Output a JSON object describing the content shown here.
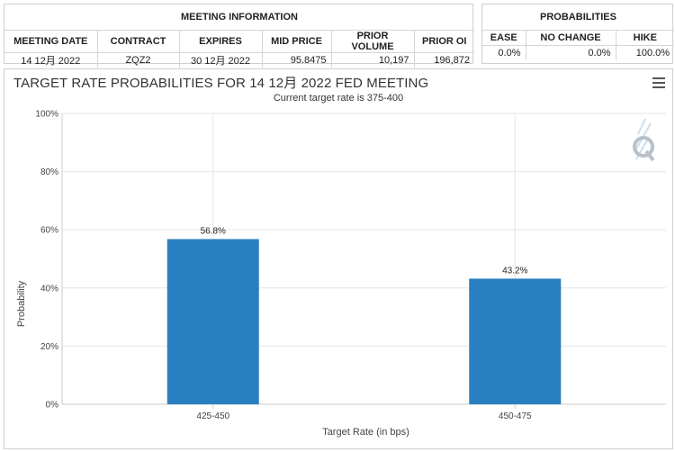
{
  "meeting_info": {
    "title": "MEETING INFORMATION",
    "columns": [
      "MEETING DATE",
      "CONTRACT",
      "EXPIRES",
      "MID PRICE",
      "PRIOR VOLUME",
      "PRIOR OI"
    ],
    "row": [
      "14 12月 2022",
      "ZQZ2",
      "30 12月 2022",
      "95.8475",
      "10,197",
      "196,872"
    ]
  },
  "probabilities": {
    "title": "PROBABILITIES",
    "columns": [
      "EASE",
      "NO CHANGE",
      "HIKE"
    ],
    "row": [
      "0.0%",
      "0.0%",
      "100.0%"
    ]
  },
  "icons": {
    "menu": "hamburger-menu-icon",
    "watermark": "q-logo-icon"
  },
  "chart_data": {
    "type": "bar",
    "title": "TARGET RATE PROBABILITIES FOR 14 12月 2022 FED MEETING",
    "subtitle": "Current target rate is 375-400",
    "xlabel": "Target Rate (in bps)",
    "ylabel": "Probability",
    "categories": [
      "425-450",
      "450-475"
    ],
    "values": [
      56.8,
      43.2
    ],
    "data_labels": [
      "56.8%",
      "43.2%"
    ],
    "ylim": [
      0,
      100
    ],
    "yticks": [
      0,
      20,
      40,
      60,
      80,
      100
    ],
    "ytick_labels": [
      "0%",
      "20%",
      "40%",
      "60%",
      "80%",
      "100%"
    ],
    "grid": true,
    "legend": "none",
    "bar_color": "#2a7fc0"
  }
}
